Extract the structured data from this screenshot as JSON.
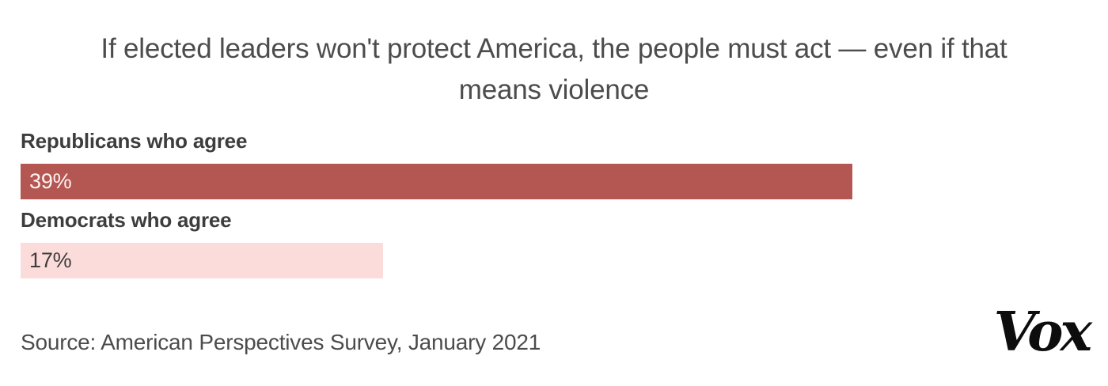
{
  "title": {
    "line1": "If elected leaders won't protect America, the people must act — even if that",
    "line2": "means violence"
  },
  "source_line": "Source: American Perspectives Survey, January 2021",
  "brand": {
    "logo_text": "Vox",
    "logo_color": "#0d0d0d"
  },
  "colors": {
    "background": "#ffffff",
    "title_text": "#4c4c4c",
    "category_label_text": "#3d3d3d",
    "republican_bar": "#b45752",
    "democrat_bar": "#fcdcdb",
    "bar_value_light": "#fdf3f2",
    "bar_value_dark": "#3e3e3e",
    "source_text": "#4c4c4c"
  },
  "chart_data": {
    "type": "bar",
    "orientation": "horizontal",
    "title": "If elected leaders won't protect America, the people must act — even if that means violence",
    "categories": [
      "Republicans who agree",
      "Democrats who agree"
    ],
    "values": [
      39,
      17
    ],
    "value_labels": [
      "39%",
      "17%"
    ],
    "xlim": [
      0,
      50
    ],
    "bar_colors": [
      "#b45752",
      "#fcdcdb"
    ],
    "grid": false,
    "legend": false,
    "axis_labels_visible": false,
    "source": "Source: American Perspectives Survey, January 2021"
  }
}
